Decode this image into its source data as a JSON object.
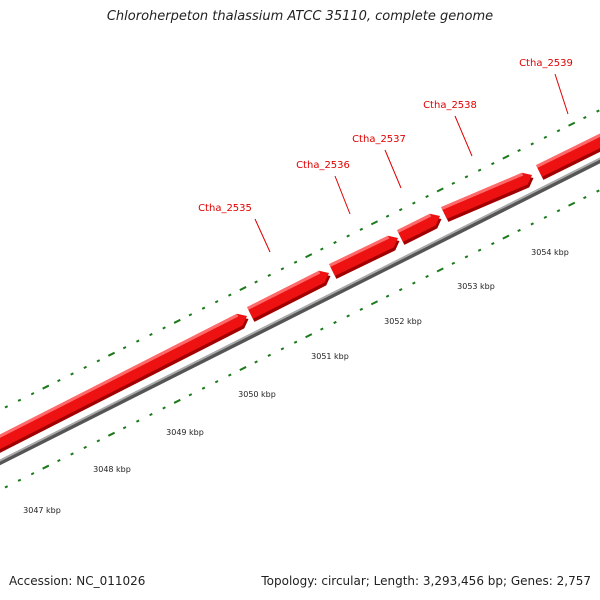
{
  "title": "Chloroherpeton thalassium ATCC 35110, complete genome",
  "footer": {
    "accession": "Accession: NC_011026",
    "summary": "Topology: circular; Length: 3,293,456 bp; Genes: 2,757"
  },
  "colors": {
    "gene": "#ee1111",
    "gene_top": "#ff6b6b",
    "backbone": "#888888",
    "tick": "#1a7a1a",
    "label": "#e00000"
  },
  "genes": [
    {
      "id": "Ctha_2535"
    },
    {
      "id": "Ctha_2536"
    },
    {
      "id": "Ctha_2537"
    },
    {
      "id": "Ctha_2538"
    },
    {
      "id": "Ctha_2539"
    }
  ],
  "scale_labels": [
    "3047 kbp",
    "3048 kbp",
    "3049 kbp",
    "3050 kbp",
    "3051 kbp",
    "3052 kbp",
    "3053 kbp",
    "3054 kbp"
  ]
}
